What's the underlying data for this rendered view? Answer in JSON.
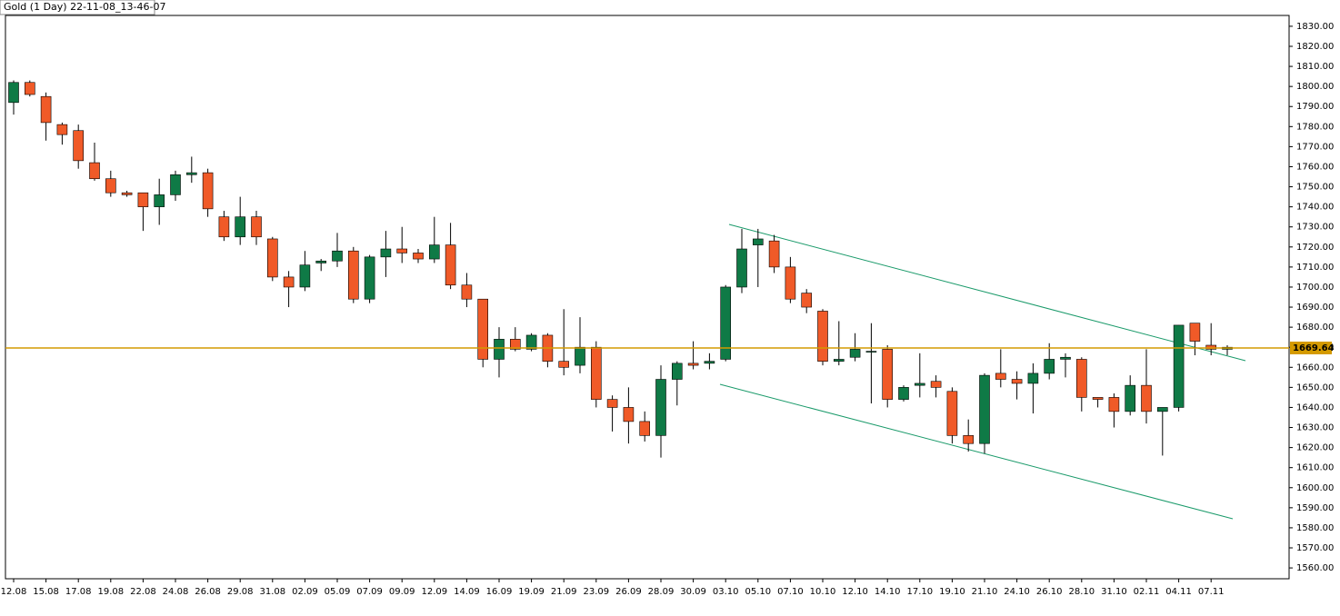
{
  "chart_data": {
    "type": "candlestick",
    "title": "Gold (1 Day) 22-11-08_13-46-07",
    "categories": [
      "12.08",
      null,
      "15.08",
      null,
      "17.08",
      null,
      "19.08",
      null,
      "22.08",
      null,
      "24.08",
      null,
      "26.08",
      null,
      "29.08",
      null,
      "31.08",
      null,
      "02.09",
      null,
      "05.09",
      null,
      "07.09",
      null,
      "09.09",
      null,
      "12.09",
      null,
      "14.09",
      null,
      "16.09",
      null,
      "19.09",
      null,
      "21.09",
      null,
      "23.09",
      null,
      "26.09",
      null,
      "28.09",
      null,
      "30.09",
      null,
      "03.10",
      null,
      "05.10",
      null,
      "07.10",
      null,
      "10.10",
      null,
      "12.10",
      null,
      "14.10",
      null,
      "17.10",
      null,
      "19.10",
      null,
      "21.10",
      null,
      "24.10",
      null,
      "26.10",
      null,
      "28.10",
      null,
      "31.10",
      null,
      "02.11",
      null,
      "04.11",
      null,
      "07.11",
      null
    ],
    "open": [
      1792,
      1802,
      1795,
      1781,
      1778,
      1762,
      1754,
      1747,
      1747,
      1740,
      1746,
      1756,
      1757,
      1735,
      1725,
      1735,
      1724,
      1705,
      1700,
      1712,
      1713,
      1718,
      1694,
      1715,
      1719,
      1717,
      1714,
      1721,
      1701,
      1694,
      1664,
      1674,
      1669,
      1676,
      1663,
      1661,
      1670,
      1644,
      1640,
      1633,
      1626,
      1654,
      1662,
      1662,
      1664,
      1700,
      1721,
      1723,
      1710,
      1697,
      1688,
      1663,
      1665,
      1668,
      1669,
      1644,
      1651,
      1653,
      1648,
      1626,
      1622,
      1657,
      1654,
      1652,
      1657,
      1664,
      1664,
      1645,
      1645,
      1638,
      1651,
      1638,
      1640,
      1682,
      1671,
      1669
    ],
    "high": [
      1803,
      1803,
      1797,
      1782,
      1781,
      1772,
      1758,
      1748,
      1747,
      1754,
      1758,
      1765,
      1759,
      1738,
      1745,
      1738,
      1725,
      1708,
      1718,
      1714,
      1727,
      1720,
      1716,
      1728,
      1730,
      1719,
      1735,
      1732,
      1707,
      1694,
      1680,
      1680,
      1677,
      1677,
      1689,
      1685,
      1673,
      1646,
      1650,
      1638,
      1661,
      1663,
      1673,
      1667,
      1701,
      1729,
      1729,
      1726,
      1715,
      1699,
      1689,
      1683,
      1677,
      1682,
      1671,
      1651,
      1667,
      1656,
      1650,
      1634,
      1657,
      1669,
      1658,
      1662,
      1672,
      1667,
      1665,
      1645,
      1647,
      1656,
      1669,
      1640,
      1681,
      1682,
      1682,
      1671
    ],
    "low": [
      1786,
      1795,
      1773,
      1771,
      1759,
      1753,
      1745,
      1745,
      1728,
      1731,
      1743,
      1752,
      1735,
      1723,
      1721,
      1721,
      1703,
      1690,
      1698,
      1708,
      1710,
      1692,
      1692,
      1705,
      1712,
      1712,
      1712,
      1699,
      1690,
      1660,
      1655,
      1668,
      1668,
      1660,
      1656,
      1657,
      1640,
      1628,
      1622,
      1623,
      1615,
      1641,
      1659,
      1659,
      1663,
      1697,
      1700,
      1707,
      1692,
      1687,
      1661,
      1661,
      1663,
      1642,
      1640,
      1643,
      1645,
      1645,
      1622,
      1618,
      1617,
      1650,
      1644,
      1637,
      1654,
      1655,
      1638,
      1640,
      1630,
      1636,
      1632,
      1616,
      1638,
      1666,
      1666,
      1666
    ],
    "close": [
      1802,
      1796,
      1782,
      1776,
      1763,
      1754,
      1747,
      1746,
      1740,
      1746,
      1756,
      1757,
      1739,
      1725,
      1735,
      1725,
      1705,
      1700,
      1711,
      1713,
      1718,
      1694,
      1715,
      1719,
      1717,
      1714,
      1721,
      1701,
      1694,
      1664,
      1674,
      1669,
      1676,
      1663,
      1660,
      1670,
      1644,
      1640,
      1633,
      1626,
      1654,
      1662,
      1661,
      1663,
      1700,
      1719,
      1724,
      1710,
      1694,
      1690,
      1663,
      1664,
      1669,
      1668,
      1644,
      1650,
      1652,
      1650,
      1626,
      1622,
      1656,
      1654,
      1652,
      1657,
      1664,
      1665,
      1645,
      1644,
      1638,
      1651,
      1638,
      1640,
      1681,
      1673,
      1669,
      1670
    ],
    "up_color": "#0f7a46",
    "down_color": "#f05a28",
    "ylim": [
      1554.6,
      1835.4
    ],
    "yticks": [
      {
        "value": 1560,
        "label": "1560.00"
      },
      {
        "value": 1570,
        "label": "1570.00"
      },
      {
        "value": 1580,
        "label": "1580.00"
      },
      {
        "value": 1590,
        "label": "1590.00"
      },
      {
        "value": 1600,
        "label": "1600.00"
      },
      {
        "value": 1610,
        "label": "1610.00"
      },
      {
        "value": 1620,
        "label": "1620.00"
      },
      {
        "value": 1630,
        "label": "1630.00"
      },
      {
        "value": 1640,
        "label": "1640.00"
      },
      {
        "value": 1650,
        "label": "1650.00"
      },
      {
        "value": 1660,
        "label": "1660.00"
      },
      {
        "value": 1670,
        "label": "1670.00"
      },
      {
        "value": 1680,
        "label": "1680.00"
      },
      {
        "value": 1690,
        "label": "1690.00"
      },
      {
        "value": 1700,
        "label": "1700.00"
      },
      {
        "value": 1710,
        "label": "1710.00"
      },
      {
        "value": 1720,
        "label": "1720.00"
      },
      {
        "value": 1730,
        "label": "1730.00"
      },
      {
        "value": 1740,
        "label": "1740.00"
      },
      {
        "value": 1750,
        "label": "1750.00"
      },
      {
        "value": 1760,
        "label": "1760.00"
      },
      {
        "value": 1770,
        "label": "1770.00"
      },
      {
        "value": 1780,
        "label": "1780.00"
      },
      {
        "value": 1790,
        "label": "1790.00"
      },
      {
        "value": 1800,
        "label": "1800.00"
      },
      {
        "value": 1810,
        "label": "1810.00"
      },
      {
        "value": 1820,
        "label": "1820.00"
      },
      {
        "value": 1830,
        "label": "1830.00"
      }
    ],
    "price_line": {
      "value": 1669.64,
      "color": "#d49a00"
    }
  }
}
